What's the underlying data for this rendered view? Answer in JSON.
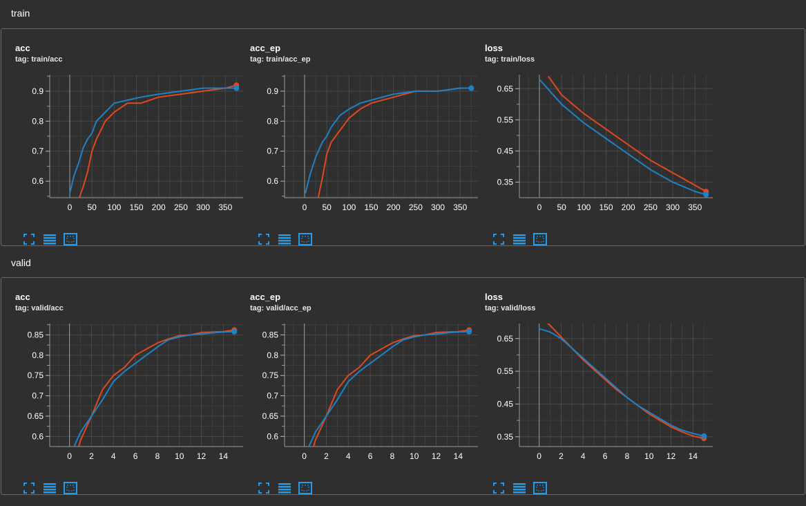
{
  "colors": {
    "background": "#2f2f2f",
    "series_orange": "#e1481f",
    "series_blue": "#1f82c8",
    "grid": "#4a4a4a",
    "tool_icon": "#1e9cf0"
  },
  "toolbar": {
    "icons": [
      "fit-to-screen-icon",
      "toggle-log-icon",
      "fit-domain-icon"
    ]
  },
  "sections": [
    {
      "title": "train",
      "cards": [
        {
          "title": "acc",
          "tag": "tag: train/acc",
          "chart_data": {
            "type": "line",
            "xlabel": "",
            "ylabel": "",
            "xlim": [
              -45,
              390
            ],
            "ylim": [
              0.545,
              0.955
            ],
            "xticks": [
              0,
              50,
              100,
              150,
              200,
              250,
              300,
              350
            ],
            "yticks": [
              0.6,
              0.7,
              0.8,
              0.9
            ],
            "grid": true,
            "series": [
              {
                "color": "#e1481f",
                "x": [
                  18,
                  30,
                  40,
                  50,
                  60,
                  80,
                  100,
                  130,
                  160,
                  200,
                  250,
                  300,
                  350,
                  375
                ],
                "y": [
                  0.53,
                  0.58,
                  0.63,
                  0.7,
                  0.74,
                  0.8,
                  0.83,
                  0.86,
                  0.86,
                  0.88,
                  0.89,
                  0.9,
                  0.91,
                  0.92
                ]
              },
              {
                "color": "#1f82c8",
                "x": [
                  0,
                  10,
                  20,
                  30,
                  40,
                  50,
                  60,
                  80,
                  100,
                  130,
                  160,
                  200,
                  250,
                  300,
                  350,
                  375
                ],
                "y": [
                  0.56,
                  0.62,
                  0.66,
                  0.71,
                  0.74,
                  0.76,
                  0.8,
                  0.83,
                  0.86,
                  0.87,
                  0.88,
                  0.89,
                  0.9,
                  0.91,
                  0.91,
                  0.91
                ]
              }
            ]
          }
        },
        {
          "title": "acc_ep",
          "tag": "tag: train/acc_ep",
          "chart_data": {
            "type": "line",
            "xlabel": "",
            "ylabel": "",
            "xlim": [
              -45,
              390
            ],
            "ylim": [
              0.545,
              0.955
            ],
            "xticks": [
              0,
              50,
              100,
              150,
              200,
              250,
              300,
              350
            ],
            "yticks": [
              0.6,
              0.7,
              0.8,
              0.9
            ],
            "grid": true,
            "series": [
              {
                "color": "#e1481f",
                "x": [
                  30,
                  40,
                  50,
                  60,
                  70,
                  80,
                  100,
                  125,
                  150,
                  200,
                  250,
                  300,
                  350,
                  375
                ],
                "y": [
                  0.54,
                  0.61,
                  0.69,
                  0.73,
                  0.75,
                  0.77,
                  0.81,
                  0.84,
                  0.86,
                  0.88,
                  0.9,
                  0.9,
                  0.91,
                  0.91
                ]
              },
              {
                "color": "#1f82c8",
                "x": [
                  2,
                  12,
                  25,
                  40,
                  50,
                  60,
                  70,
                  80,
                  100,
                  125,
                  150,
                  200,
                  250,
                  300,
                  350,
                  375
                ],
                "y": [
                  0.56,
                  0.62,
                  0.68,
                  0.73,
                  0.75,
                  0.78,
                  0.8,
                  0.82,
                  0.84,
                  0.86,
                  0.87,
                  0.89,
                  0.9,
                  0.9,
                  0.91,
                  0.91
                ]
              }
            ]
          }
        },
        {
          "title": "loss",
          "tag": "tag: train/loss",
          "chart_data": {
            "type": "line",
            "xlabel": "",
            "ylabel": "",
            "xlim": [
              -45,
              390
            ],
            "ylim": [
              0.3,
              0.695
            ],
            "xticks": [
              0,
              50,
              100,
              150,
              200,
              250,
              300,
              350
            ],
            "yticks": [
              0.35,
              0.45,
              0.55,
              0.65
            ],
            "grid": true,
            "series": [
              {
                "color": "#e1481f",
                "x": [
                  20,
                  50,
                  100,
                  150,
                  200,
                  250,
                  300,
                  350,
                  375
                ],
                "y": [
                  0.69,
                  0.63,
                  0.57,
                  0.52,
                  0.47,
                  0.42,
                  0.38,
                  0.34,
                  0.32
                ]
              },
              {
                "color": "#1f82c8",
                "x": [
                  0,
                  50,
                  100,
                  150,
                  200,
                  250,
                  300,
                  350,
                  375
                ],
                "y": [
                  0.68,
                  0.6,
                  0.54,
                  0.49,
                  0.44,
                  0.39,
                  0.35,
                  0.32,
                  0.31
                ]
              }
            ]
          }
        }
      ]
    },
    {
      "title": "valid",
      "cards": [
        {
          "title": "acc",
          "tag": "tag: valid/acc",
          "chart_data": {
            "type": "line",
            "xlabel": "",
            "ylabel": "",
            "xlim": [
              -1.8,
              15.8
            ],
            "ylim": [
              0.575,
              0.878
            ],
            "xticks": [
              0,
              2,
              4,
              6,
              8,
              10,
              12,
              14
            ],
            "yticks": [
              0.6,
              0.65,
              0.7,
              0.75,
              0.8,
              0.85
            ],
            "grid": true,
            "series": [
              {
                "color": "#e1481f",
                "x": [
                  0,
                  1,
                  2,
                  3,
                  4,
                  5,
                  6,
                  7,
                  8,
                  9,
                  10,
                  11,
                  12,
                  13,
                  14,
                  15
                ],
                "y": [
                  0.5,
                  0.59,
                  0.65,
                  0.715,
                  0.75,
                  0.77,
                  0.8,
                  0.815,
                  0.83,
                  0.84,
                  0.848,
                  0.85,
                  0.856,
                  0.857,
                  0.858,
                  0.862
                ]
              },
              {
                "color": "#1f82c8",
                "x": [
                  0,
                  1,
                  2,
                  3,
                  4,
                  5,
                  6,
                  7,
                  8,
                  9,
                  10,
                  11,
                  12,
                  13,
                  14,
                  15
                ],
                "y": [
                  0.55,
                  0.61,
                  0.65,
                  0.69,
                  0.735,
                  0.76,
                  0.78,
                  0.8,
                  0.82,
                  0.838,
                  0.845,
                  0.85,
                  0.852,
                  0.855,
                  0.857,
                  0.858
                ]
              }
            ]
          }
        },
        {
          "title": "acc_ep",
          "tag": "tag: valid/acc_ep",
          "chart_data": {
            "type": "line",
            "xlabel": "",
            "ylabel": "",
            "xlim": [
              -1.8,
              15.8
            ],
            "ylim": [
              0.575,
              0.878
            ],
            "xticks": [
              0,
              2,
              4,
              6,
              8,
              10,
              12,
              14
            ],
            "yticks": [
              0.6,
              0.65,
              0.7,
              0.75,
              0.8,
              0.85
            ],
            "grid": true,
            "series": [
              {
                "color": "#e1481f",
                "x": [
                  0,
                  1,
                  2,
                  3,
                  4,
                  5,
                  6,
                  7,
                  8,
                  9,
                  10,
                  11,
                  12,
                  13,
                  14,
                  15
                ],
                "y": [
                  0.5,
                  0.59,
                  0.65,
                  0.715,
                  0.75,
                  0.77,
                  0.8,
                  0.815,
                  0.83,
                  0.84,
                  0.848,
                  0.85,
                  0.856,
                  0.857,
                  0.858,
                  0.862
                ]
              },
              {
                "color": "#1f82c8",
                "x": [
                  0,
                  1,
                  2,
                  3,
                  4,
                  5,
                  6,
                  7,
                  8,
                  9,
                  10,
                  11,
                  12,
                  13,
                  14,
                  15
                ],
                "y": [
                  0.55,
                  0.61,
                  0.65,
                  0.69,
                  0.735,
                  0.76,
                  0.78,
                  0.8,
                  0.82,
                  0.838,
                  0.845,
                  0.85,
                  0.852,
                  0.855,
                  0.857,
                  0.858
                ]
              }
            ]
          }
        },
        {
          "title": "loss",
          "tag": "tag: valid/loss",
          "chart_data": {
            "type": "line",
            "xlabel": "",
            "ylabel": "",
            "xlim": [
              -1.8,
              15.8
            ],
            "ylim": [
              0.32,
              0.696
            ],
            "xticks": [
              0,
              2,
              4,
              6,
              8,
              10,
              12,
              14
            ],
            "yticks": [
              0.35,
              0.45,
              0.55,
              0.65
            ],
            "grid": true,
            "series": [
              {
                "color": "#e1481f",
                "x": [
                  0,
                  1,
                  2,
                  3,
                  4,
                  5,
                  6,
                  7,
                  8,
                  9,
                  10,
                  11,
                  12,
                  13,
                  14,
                  15
                ],
                "y": [
                  0.72,
                  0.69,
                  0.655,
                  0.62,
                  0.585,
                  0.555,
                  0.525,
                  0.495,
                  0.47,
                  0.445,
                  0.42,
                  0.4,
                  0.38,
                  0.365,
                  0.352,
                  0.345
                ]
              },
              {
                "color": "#1f82c8",
                "x": [
                  0,
                  1,
                  2,
                  3,
                  4,
                  5,
                  6,
                  7,
                  8,
                  9,
                  10,
                  11,
                  12,
                  13,
                  14,
                  15
                ],
                "y": [
                  0.68,
                  0.67,
                  0.65,
                  0.62,
                  0.59,
                  0.56,
                  0.53,
                  0.5,
                  0.47,
                  0.445,
                  0.425,
                  0.405,
                  0.385,
                  0.37,
                  0.36,
                  0.352
                ]
              }
            ]
          }
        }
      ]
    }
  ]
}
